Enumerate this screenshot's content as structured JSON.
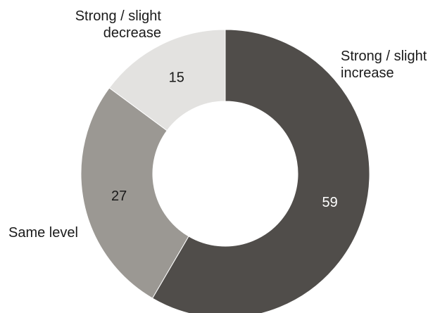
{
  "chart_data": {
    "type": "pie",
    "variant": "donut",
    "categories": [
      "Strong / slight increase",
      "Same level",
      "Strong / slight decrease"
    ],
    "values": [
      59,
      27,
      15
    ],
    "label_lines": [
      [
        "Strong / slight",
        "increase"
      ],
      [
        "Same level"
      ],
      [
        "Strong / slight",
        "decrease"
      ]
    ],
    "colors": [
      "#504d4a",
      "#9b9893",
      "#e3e2e0"
    ],
    "value_label_colors": [
      "#ffffff",
      "#1a1a1a",
      "#1a1a1a"
    ],
    "start_angle_deg": 0,
    "direction": "clockwise",
    "legend": "none"
  }
}
